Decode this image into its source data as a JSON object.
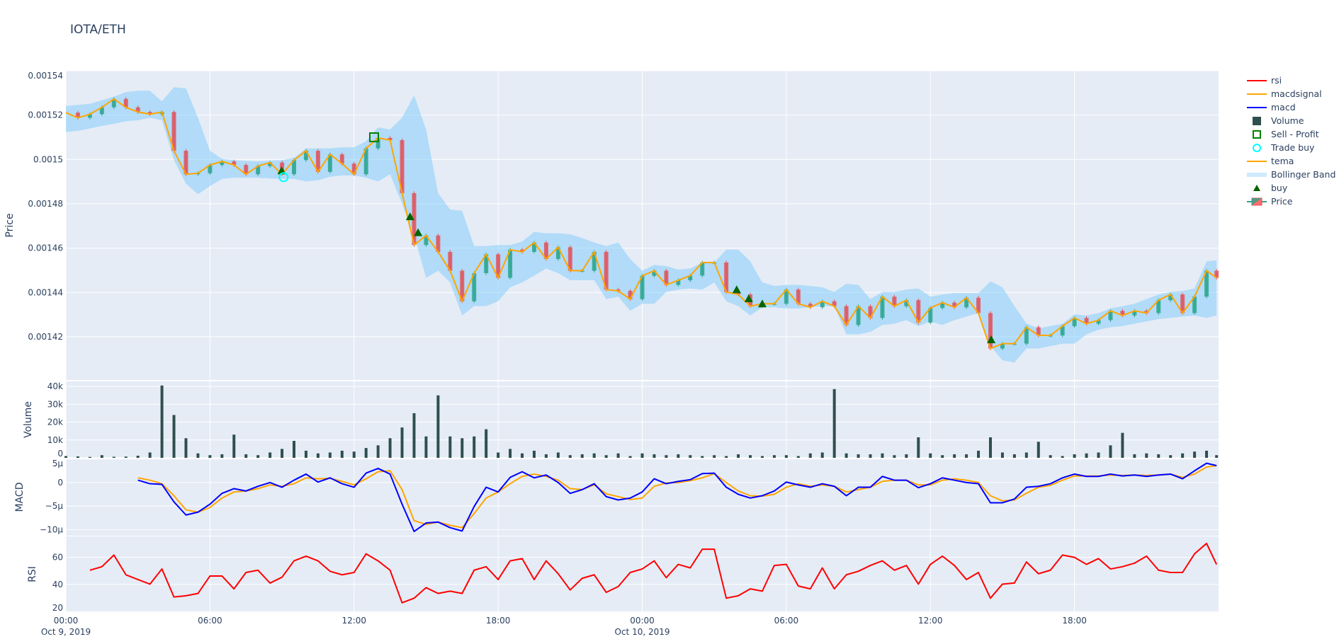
{
  "title": "IOTA/ETH",
  "colors": {
    "plot_bg": "#E5ECF6",
    "grid": "#ffffff",
    "rsi": "#ff0000",
    "macdsignal": "#ffa500",
    "macd": "#0000ff",
    "volume": "#2f4f4f",
    "sell_profit": "#008000",
    "trade_buy": "#00ffff",
    "tema": "#ffa500",
    "bollinger": "#87cefa",
    "buy": "#006400",
    "candle_up": "#2ca58d",
    "candle_down": "#e0525a"
  },
  "legend": [
    {
      "label": "rsi",
      "icon": "line",
      "color": "#ff0000"
    },
    {
      "label": "macdsignal",
      "icon": "line",
      "color": "#ffa500"
    },
    {
      "label": "macd",
      "icon": "line",
      "color": "#0000ff"
    },
    {
      "label": "Volume",
      "icon": "filled-square",
      "color": "#2f4f4f"
    },
    {
      "label": "Sell - Profit",
      "icon": "hollow-square",
      "color": "#008000"
    },
    {
      "label": "Trade buy",
      "icon": "hollow-circle",
      "color": "#00ffff"
    },
    {
      "label": "tema",
      "icon": "line",
      "color": "#ffa500"
    },
    {
      "label": "Bollinger Band",
      "icon": "band",
      "color": "#87cefa"
    },
    {
      "label": "buy",
      "icon": "triangle-up",
      "color": "#006400"
    },
    {
      "label": "Price",
      "icon": "candlestick",
      "color": "#2ca58d"
    }
  ],
  "chart_data": {
    "type": "candlestick",
    "title": "IOTA/ETH",
    "xaxis": {
      "range": [
        "2019-10-09 00:00",
        "2019-10-11 00:00"
      ],
      "ticks": [
        {
          "at": "2019-10-09 00:00",
          "label": "00:00",
          "sub": "Oct 9, 2019"
        },
        {
          "at": "2019-10-09 06:00",
          "label": "06:00",
          "sub": ""
        },
        {
          "at": "2019-10-09 12:00",
          "label": "12:00",
          "sub": ""
        },
        {
          "at": "2019-10-09 18:00",
          "label": "18:00",
          "sub": ""
        },
        {
          "at": "2019-10-10 00:00",
          "label": "00:00",
          "sub": "Oct 10, 2019"
        },
        {
          "at": "2019-10-10 06:00",
          "label": "06:00",
          "sub": ""
        },
        {
          "at": "2019-10-10 12:00",
          "label": "12:00",
          "sub": ""
        },
        {
          "at": "2019-10-10 18:00",
          "label": "18:00",
          "sub": ""
        }
      ]
    },
    "panels": {
      "price": {
        "ylabel": "Price",
        "ylim": [
          0.0014005,
          0.00154
        ],
        "ticks": [
          [
            0.00142,
            "0.00142"
          ],
          [
            0.00144,
            "0.00144"
          ],
          [
            0.00146,
            "0.00146"
          ],
          [
            0.00148,
            "0.00148"
          ],
          [
            0.0015,
            "0.0015"
          ],
          [
            0.00152,
            "0.00152"
          ],
          [
            0.00154,
            "0.00154"
          ]
        ]
      },
      "volume": {
        "ylabel": "Volume",
        "ylim": [
          0,
          42800
        ],
        "ticks": [
          [
            0,
            "0"
          ],
          [
            10000,
            "10k"
          ],
          [
            20000,
            "20k"
          ],
          [
            30000,
            "30k"
          ],
          [
            40000,
            "40k"
          ]
        ]
      },
      "macd": {
        "ylabel": "MACD",
        "ylim": [
          -1.13e-05,
          5.1e-06
        ],
        "ticks": [
          [
            5e-06,
            "5µ"
          ],
          [
            0,
            "0"
          ],
          [
            -5e-06,
            "−5µ"
          ],
          [
            -1e-05,
            "−10µ"
          ]
        ]
      },
      "rsi": {
        "ylabel": "RSI",
        "ylim": [
          19.5,
          75.5
        ],
        "ticks": [
          [
            20,
            "20"
          ],
          [
            40,
            "40"
          ],
          [
            60,
            "60"
          ]
        ]
      }
    },
    "x": [
      "2019-10-09 00:00",
      "2019-10-09 00:30",
      "2019-10-09 01:00",
      "2019-10-09 01:30",
      "2019-10-09 02:00",
      "2019-10-09 02:30",
      "2019-10-09 03:00",
      "2019-10-09 03:30",
      "2019-10-09 04:00",
      "2019-10-09 04:30",
      "2019-10-09 05:00",
      "2019-10-09 05:30",
      "2019-10-09 06:00",
      "2019-10-09 06:30",
      "2019-10-09 07:00",
      "2019-10-09 07:30",
      "2019-10-09 08:00",
      "2019-10-09 08:30",
      "2019-10-09 09:00",
      "2019-10-09 09:30",
      "2019-10-09 10:00",
      "2019-10-09 10:30",
      "2019-10-09 11:00",
      "2019-10-09 11:30",
      "2019-10-09 12:00",
      "2019-10-09 12:30",
      "2019-10-09 13:00",
      "2019-10-09 13:30",
      "2019-10-09 14:00",
      "2019-10-09 14:30",
      "2019-10-09 15:00",
      "2019-10-09 15:30",
      "2019-10-09 16:00",
      "2019-10-09 16:30",
      "2019-10-09 17:00",
      "2019-10-09 17:30",
      "2019-10-09 18:00",
      "2019-10-09 18:30",
      "2019-10-09 19:00",
      "2019-10-09 19:30",
      "2019-10-09 20:00",
      "2019-10-09 20:30",
      "2019-10-09 21:00",
      "2019-10-09 21:30",
      "2019-10-09 22:00",
      "2019-10-09 22:30",
      "2019-10-09 23:00",
      "2019-10-09 23:30",
      "2019-10-10 00:00",
      "2019-10-10 00:30",
      "2019-10-10 01:00",
      "2019-10-10 01:30",
      "2019-10-10 02:00",
      "2019-10-10 02:30",
      "2019-10-10 03:00",
      "2019-10-10 03:30",
      "2019-10-10 04:00",
      "2019-10-10 04:30",
      "2019-10-10 05:00",
      "2019-10-10 05:30",
      "2019-10-10 06:00",
      "2019-10-10 06:30",
      "2019-10-10 07:00",
      "2019-10-10 07:30",
      "2019-10-10 08:00",
      "2019-10-10 08:30",
      "2019-10-10 09:00",
      "2019-10-10 09:30",
      "2019-10-10 10:00",
      "2019-10-10 10:30",
      "2019-10-10 11:00",
      "2019-10-10 11:30",
      "2019-10-10 12:00",
      "2019-10-10 12:30",
      "2019-10-10 13:00",
      "2019-10-10 13:30",
      "2019-10-10 14:00",
      "2019-10-10 14:30",
      "2019-10-10 15:00",
      "2019-10-10 15:30",
      "2019-10-10 16:00",
      "2019-10-10 16:30",
      "2019-10-10 17:00",
      "2019-10-10 17:30",
      "2019-10-10 18:00",
      "2019-10-10 18:30",
      "2019-10-10 19:00",
      "2019-10-10 19:30",
      "2019-10-10 20:00",
      "2019-10-10 20:30",
      "2019-10-10 21:00",
      "2019-10-10 21:30",
      "2019-10-10 22:00",
      "2019-10-10 22:30",
      "2019-10-10 23:00",
      "2019-10-10 23:30",
      "2019-10-10 23:55"
    ],
    "price_close": [
      0.0015211,
      0.0015188,
      0.0015204,
      0.0015235,
      0.0015273,
      0.0015235,
      0.0015214,
      0.0015204,
      0.0015214,
      0.0015039,
      0.0014933,
      0.0014938,
      0.0014975,
      0.0014991,
      0.0014975,
      0.0014933,
      0.001497,
      0.0014986,
      0.0014933,
      0.0014997,
      0.0015039,
      0.0014944,
      0.0015023,
      0.0014981,
      0.0014933,
      0.001505,
      0.0015097,
      0.0015087,
      0.0014848,
      0.0014614,
      0.0014657,
      0.0014583,
      0.0014498,
      0.001436,
      0.0014487,
      0.0014572,
      0.0014466,
      0.0014593,
      0.0014583,
      0.0014625,
      0.0014551,
      0.0014604,
      0.0014498,
      0.0014498,
      0.0014583,
      0.0014413,
      0.0014407,
      0.001437,
      0.0014475,
      0.0014498,
      0.0014434,
      0.0014455,
      0.0014476,
      0.0014535,
      0.0014535,
      0.0014402,
      0.0014391,
      0.0014338,
      0.0014349,
      0.0014349,
      0.0014413,
      0.0014349,
      0.0014333,
      0.001436,
      0.0014338,
      0.0014253,
      0.0014338,
      0.0014285,
      0.0014381,
      0.0014338,
      0.0014365,
      0.0014264,
      0.001433,
      0.0014354,
      0.0014333,
      0.0014376,
      0.0014307,
      0.0014147,
      0.0014169,
      0.0014169,
      0.0014243,
      0.0014206,
      0.0014206,
      0.0014248,
      0.0014285,
      0.0014259,
      0.0014275,
      0.0014317,
      0.0014296,
      0.0014317,
      0.0014307,
      0.0014365,
      0.0014391,
      0.0014307,
      0.0014381,
      0.0014498,
      0.0014466
    ],
    "tema": [
      0.0015211,
      0.0015188,
      0.0015204,
      0.0015235,
      0.0015273,
      0.0015235,
      0.0015214,
      0.0015204,
      0.0015214,
      0.0015039,
      0.0014933,
      0.0014938,
      0.0014975,
      0.0014991,
      0.0014975,
      0.0014933,
      0.001497,
      0.0014986,
      0.0014933,
      0.0014997,
      0.0015039,
      0.0014944,
      0.0015023,
      0.0014981,
      0.0014933,
      0.001505,
      0.0015097,
      0.0015087,
      0.0014848,
      0.0014614,
      0.0014657,
      0.0014583,
      0.0014498,
      0.001436,
      0.0014487,
      0.0014572,
      0.0014466,
      0.0014593,
      0.0014583,
      0.0014625,
      0.0014551,
      0.0014604,
      0.0014498,
      0.0014498,
      0.0014583,
      0.0014413,
      0.0014407,
      0.001437,
      0.0014475,
      0.0014498,
      0.0014434,
      0.0014455,
      0.0014476,
      0.0014535,
      0.0014535,
      0.0014402,
      0.0014391,
      0.0014338,
      0.0014349,
      0.0014349,
      0.0014413,
      0.0014349,
      0.0014333,
      0.001436,
      0.0014338,
      0.0014253,
      0.0014338,
      0.0014285,
      0.0014381,
      0.0014338,
      0.0014365,
      0.0014264,
      0.001433,
      0.0014354,
      0.0014333,
      0.0014376,
      0.0014307,
      0.0014147,
      0.0014169,
      0.0014169,
      0.0014243,
      0.0014206,
      0.0014206,
      0.0014248,
      0.0014285,
      0.0014259,
      0.0014275,
      0.0014317,
      0.0014296,
      0.0014317,
      0.0014307,
      0.0014365,
      0.0014391,
      0.0014307,
      0.0014381,
      0.0014498,
      0.0014466
    ],
    "bb_upper": [
      0.0015241,
      0.0015246,
      0.0015251,
      0.0015267,
      0.0015283,
      0.0015304,
      0.001531,
      0.001531,
      0.0015262,
      0.0015326,
      0.001532,
      0.0015188,
      0.0015039,
      0.0015002,
      0.0014997,
      0.0014993,
      0.0014991,
      0.0014994,
      0.0014997,
      0.0015007,
      0.001505,
      0.001505,
      0.001505,
      0.0015055,
      0.0015055,
      0.0015082,
      0.0015145,
      0.0015135,
      0.0015188,
      0.0015289,
      0.0015135,
      0.0014848,
      0.0014774,
      0.0014768,
      0.0014609,
      0.0014609,
      0.0014614,
      0.0014614,
      0.001463,
      0.0014673,
      0.0014667,
      0.0014667,
      0.0014662,
      0.0014646,
      0.0014625,
      0.0014609,
      0.0014625,
      0.0014551,
      0.0014498,
      0.0014524,
      0.0014519,
      0.0014503,
      0.0014508,
      0.0014535,
      0.0014535,
      0.0014593,
      0.0014593,
      0.001454,
      0.0014445,
      0.0014429,
      0.0014434,
      0.0014434,
      0.0014429,
      0.0014423,
      0.0014402,
      0.0014439,
      0.0014434,
      0.001437,
      0.0014402,
      0.0014402,
      0.0014413,
      0.0014418,
      0.0014381,
      0.0014391,
      0.0014397,
      0.0014397,
      0.0014397,
      0.001445,
      0.0014423,
      0.0014338,
      0.001426,
      0.0014238,
      0.0014248,
      0.0014259,
      0.0014301,
      0.0014296,
      0.0014307,
      0.0014328,
      0.0014338,
      0.0014349,
      0.001437,
      0.0014391,
      0.0014402,
      0.0014407,
      0.0014418,
      0.001454,
      0.0014545
    ],
    "bb_lower": [
      0.0015124,
      0.0015129,
      0.001514,
      0.0015151,
      0.0015161,
      0.0015172,
      0.0015177,
      0.0015188,
      0.0015177,
      0.0014997,
      0.001489,
      0.0014843,
      0.001488,
      0.0014912,
      0.0014917,
      0.0014917,
      0.0014917,
      0.0014914,
      0.0014912,
      0.0014912,
      0.0014901,
      0.0014906,
      0.0014922,
      0.0014928,
      0.0014928,
      0.0014917,
      0.0014901,
      0.0014933,
      0.00148,
      0.0014657,
      0.0014466,
      0.0014498,
      0.0014445,
      0.0014296,
      0.0014338,
      0.0014338,
      0.001436,
      0.0014423,
      0.0014445,
      0.0014476,
      0.0014508,
      0.0014487,
      0.0014455,
      0.0014455,
      0.0014455,
      0.001437,
      0.0014381,
      0.0014317,
      0.0014349,
      0.0014349,
      0.0014402,
      0.0014413,
      0.0014418,
      0.0014413,
      0.0014445,
      0.001436,
      0.0014338,
      0.0014296,
      0.0014333,
      0.0014333,
      0.0014328,
      0.0014328,
      0.0014333,
      0.0014338,
      0.0014338,
      0.0014211,
      0.0014211,
      0.0014222,
      0.0014253,
      0.0014259,
      0.0014275,
      0.0014248,
      0.0014269,
      0.0014253,
      0.0014275,
      0.0014291,
      0.0014307,
      0.0014158,
      0.0014094,
      0.0014084,
      0.0014147,
      0.0014147,
      0.0014158,
      0.0014169,
      0.0014169,
      0.0014211,
      0.0014232,
      0.0014243,
      0.0014248,
      0.0014259,
      0.0014269,
      0.001428,
      0.0014285,
      0.0014291,
      0.0014296,
      0.0014285,
      0.0014296
    ],
    "volume": [
      1000,
      800,
      500,
      1500,
      600,
      700,
      1200,
      3000,
      40500,
      24000,
      11000,
      2500,
      1500,
      2000,
      13000,
      2000,
      1500,
      3000,
      5000,
      9500,
      4000,
      2500,
      3000,
      4000,
      3500,
      5500,
      7000,
      11000,
      17000,
      25000,
      12000,
      35000,
      12000,
      11000,
      12000,
      16000,
      3000,
      5000,
      2500,
      4000,
      2000,
      3000,
      1500,
      2000,
      2500,
      1500,
      2500,
      1000,
      2500,
      2000,
      1500,
      2000,
      1500,
      1000,
      1500,
      1000,
      2000,
      1500,
      1000,
      1500,
      1500,
      1000,
      2500,
      3000,
      38500,
      2500,
      2000,
      2000,
      2500,
      1500,
      2000,
      11500,
      2500,
      1500,
      2000,
      2000,
      4000,
      11500,
      3000,
      2000,
      3000,
      9000,
      1500,
      1000,
      2000,
      2500,
      3000,
      7000,
      14000,
      2000,
      2500,
      2000,
      1500,
      2500,
      3500,
      4000,
      1500
    ],
    "macd": [
      null,
      null,
      null,
      null,
      null,
      null,
      5e-07,
      -2.5e-07,
      -4e-07,
      -4.1e-06,
      -6.9e-06,
      -6.3e-06,
      -4.6e-06,
      -2.3e-06,
      -1.3e-06,
      -1.8e-06,
      -8e-07,
      0,
      -1e-06,
      5e-07,
      1.8e-06,
      1e-07,
      1e-06,
      -2.5e-07,
      -1e-06,
      2e-06,
      3e-06,
      1.8e-06,
      -4.6e-06,
      -1.04e-05,
      -8.6e-06,
      -8.4e-06,
      -9.6e-06,
      -1.03e-05,
      -5.1e-06,
      -1e-06,
      -2e-06,
      1.1e-06,
      2.3e-06,
      1e-06,
      1.6e-06,
      0,
      -2.3e-06,
      -1.5e-06,
      -2.5e-07,
      -3e-06,
      -3.7e-06,
      -3.3e-06,
      -2e-06,
      8e-07,
      -2.5e-07,
      2.5e-07,
      6e-07,
      1.9e-06,
      2e-06,
      -1e-06,
      -2.5e-06,
      -3.3e-06,
      -2.8e-06,
      -1.8e-06,
      1e-07,
      -5e-07,
      -1e-06,
      -2.5e-07,
      -8e-07,
      -2.8e-06,
      -1e-06,
      -1e-06,
      1.3e-06,
      5e-07,
      5e-07,
      -1.1e-06,
      -2.5e-07,
      1e-06,
      5e-07,
      0,
      -2.5e-07,
      -4.3e-06,
      -4.3e-06,
      -3.5e-06,
      -1e-06,
      -8e-07,
      -2.5e-07,
      1e-06,
      1.8e-06,
      1.3e-06,
      1.3e-06,
      1.8e-06,
      1.4e-06,
      1.6e-06,
      1.3e-06,
      1.6e-06,
      1.8e-06,
      8e-07,
      2.5e-06,
      4.1e-06,
      3.6e-06
    ],
    "macdsignal": [
      null,
      null,
      null,
      null,
      null,
      null,
      1e-06,
      5e-07,
      -2.5e-07,
      -2.8e-06,
      -5.8e-06,
      -6.3e-06,
      -5.3e-06,
      -3.3e-06,
      -2e-06,
      -1.8e-06,
      -1.3e-06,
      -5e-07,
      -8e-07,
      -2.5e-07,
      1e-06,
      8e-07,
      9e-07,
      2.5e-07,
      -5e-07,
      8e-07,
      2.3e-06,
      2.5e-06,
      -1.5e-06,
      -8.1e-06,
      -8.9e-06,
      -8.4e-06,
      -9.1e-06,
      -9.6e-06,
      -6.6e-06,
      -3.3e-06,
      -2e-06,
      -2.5e-07,
      1.3e-06,
      1.8e-06,
      1.3e-06,
      5e-07,
      -1.3e-06,
      -1.5e-06,
      -5e-07,
      -2.4e-06,
      -3e-06,
      -3.6e-06,
      -3.3e-06,
      -8e-07,
      -1e-07,
      0,
      4e-07,
      1e-06,
      1.9e-06,
      0,
      -1.8e-06,
      -2.8e-06,
      -2.9e-06,
      -2.5e-06,
      -1e-06,
      -2.5e-07,
      -8e-07,
      -5e-07,
      -8e-07,
      -2e-06,
      -1.5e-06,
      -1e-06,
      2.5e-07,
      5e-07,
      5e-07,
      -5e-07,
      -5e-07,
      5e-07,
      8e-07,
      5e-07,
      0,
      -2.8e-06,
      -3.9e-06,
      -3.7e-06,
      -2.3e-06,
      -1e-06,
      -6e-07,
      5e-07,
      1.4e-06,
      1.4e-06,
      1.4e-06,
      1.6e-06,
      1.5e-06,
      1.6e-06,
      1.5e-06,
      1.6e-06,
      1.8e-06,
      1.1e-06,
      1.8e-06,
      3.3e-06,
      3.6e-06
    ],
    "rsi": [
      null,
      null,
      50.5,
      53.1,
      61.7,
      47.1,
      43.6,
      40.2,
      51.4,
      30.7,
      31.6,
      33.3,
      46.2,
      46.2,
      36.7,
      48.8,
      50.5,
      41.0,
      45.3,
      57.4,
      60.9,
      57.4,
      49.7,
      47.1,
      48.8,
      62.6,
      57.4,
      50.5,
      26.4,
      29.8,
      37.6,
      33.3,
      35.0,
      33.3,
      50.5,
      53.1,
      43.6,
      57.4,
      59.1,
      43.6,
      57.4,
      47.9,
      35.9,
      44.5,
      47.1,
      34.1,
      38.4,
      48.8,
      51.4,
      57.4,
      45.0,
      54.8,
      52.2,
      66.0,
      66.0,
      29.8,
      31.6,
      36.7,
      35.0,
      54.0,
      54.8,
      38.8,
      36.7,
      52.2,
      36.7,
      47.1,
      49.7,
      54.0,
      57.4,
      50.5,
      54.0,
      40.2,
      54.8,
      60.9,
      54.0,
      43.6,
      48.8,
      29.8,
      40.2,
      41.0,
      56.6,
      47.9,
      50.5,
      61.7,
      60.0,
      54.8,
      59.1,
      51.4,
      53.1,
      55.7,
      60.9,
      50.5,
      48.8,
      48.8,
      62.6,
      70.3,
      54.8
    ],
    "buy": [
      [
        "2019-10-09 08:59",
        0.0014949
      ],
      [
        "2019-10-09 14:20",
        0.0014742
      ],
      [
        "2019-10-09 14:40",
        0.001467
      ],
      [
        "2019-10-10 03:56",
        0.0014413
      ],
      [
        "2019-10-10 04:26",
        0.0014372
      ],
      [
        "2019-10-10 05:00",
        0.0014349
      ],
      [
        "2019-10-10 14:32",
        0.0014187
      ]
    ],
    "trade_buy": [
      [
        "2019-10-09 09:04",
        0.001492
      ]
    ],
    "sell_profit": [
      [
        "2019-10-09 12:50",
        0.00151
      ]
    ]
  }
}
